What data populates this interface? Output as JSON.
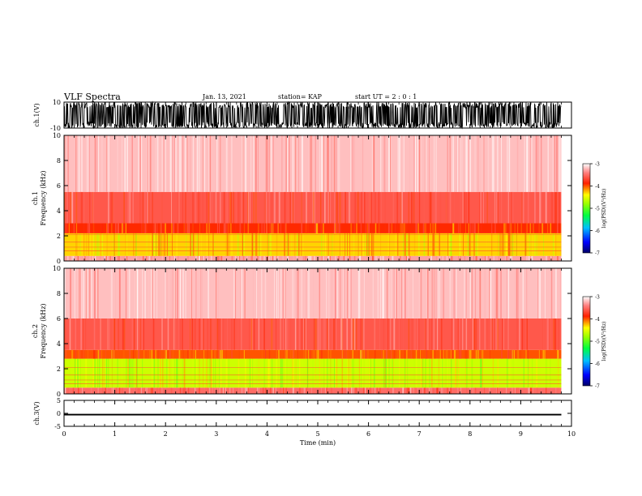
{
  "header": {
    "title": "VLF Spectra",
    "date": "Jan. 13, 2021",
    "station": "station= KAP",
    "start_ut": "start UT =  2 : 0  : 1"
  },
  "chart_data": [
    {
      "type": "line",
      "panel": "ch1-waveform",
      "ylabel": "ch.1(V)",
      "ylim": [
        -10,
        10
      ],
      "yticks": [
        10,
        -10
      ],
      "x": [
        0,
        9.8
      ],
      "values_range": [
        -10,
        10
      ],
      "note": "dense waveform oscillating between about -10 and 10 V, saturated black trace"
    },
    {
      "type": "heatmap",
      "panel": "ch1-spectrogram",
      "ylabel": "ch.1 Frequency (kHz)",
      "ylim": [
        0,
        10
      ],
      "yticks": [
        0,
        2,
        4,
        6,
        8,
        10
      ],
      "xlim": [
        0,
        9.8
      ],
      "colorbar": {
        "label": "log(PSD)(V²/Hz)",
        "range": [
          -7,
          -3
        ],
        "ticks": [
          -3,
          -4,
          -5,
          -6,
          -7
        ]
      },
      "bands": [
        {
          "f_low": 0,
          "f_high": 0.4,
          "level": -3.3
        },
        {
          "f_low": 0.4,
          "f_high": 2.2,
          "level": -4.3
        },
        {
          "f_low": 2.2,
          "f_high": 3.0,
          "level": -3.9
        },
        {
          "f_low": 3.0,
          "f_high": 5.5,
          "level": -3.6
        },
        {
          "f_low": 5.5,
          "f_high": 10,
          "level": -3.2
        }
      ]
    },
    {
      "type": "heatmap",
      "panel": "ch2-spectrogram",
      "ylabel": "ch.2 Frequency (kHz)",
      "ylim": [
        0,
        10
      ],
      "yticks": [
        0,
        2,
        4,
        6,
        8,
        10
      ],
      "xlim": [
        0,
        9.8
      ],
      "colorbar": {
        "label": "log(PSD)(V²/Hz)",
        "range": [
          -7,
          -3
        ],
        "ticks": [
          -3,
          -4,
          -5,
          -6,
          -7
        ]
      },
      "bands": [
        {
          "f_low": 0,
          "f_high": 0.5,
          "level": -3.5
        },
        {
          "f_low": 0.5,
          "f_high": 2.8,
          "level": -4.6
        },
        {
          "f_low": 2.8,
          "f_high": 3.5,
          "level": -4.0
        },
        {
          "f_low": 3.5,
          "f_high": 6.0,
          "level": -3.6
        },
        {
          "f_low": 6.0,
          "f_high": 10,
          "level": -3.2
        }
      ]
    },
    {
      "type": "line",
      "panel": "ch3-waveform",
      "ylabel": "ch.3(V)",
      "ylim": [
        -5,
        5
      ],
      "yticks": [
        5,
        0,
        -5
      ],
      "x": [
        0,
        9.8
      ],
      "values_range": [
        -0.8,
        -0.2
      ]
    }
  ],
  "x_axis": {
    "label": "Time (min)",
    "ticks": [
      "0",
      "1",
      "2",
      "3",
      "4",
      "5",
      "6",
      "7",
      "8",
      "9",
      "10"
    ],
    "xlim": [
      0,
      10
    ]
  }
}
